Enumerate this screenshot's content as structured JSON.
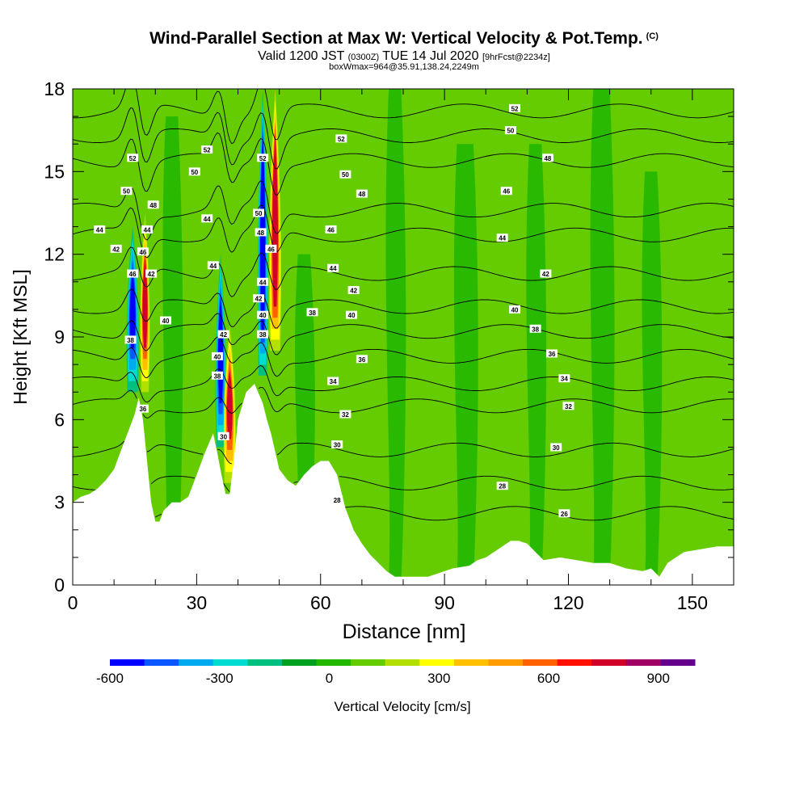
{
  "title": {
    "main": "Wind-Parallel Section at Max W: Vertical Velocity & Pot.Temp.",
    "copyright": "(C)",
    "valid_prefix": "Valid 1200 JST",
    "valid_utc": "(0300Z)",
    "valid_date": "TUE 14 Jul 2020",
    "forecast": "[9hrFcst@2234z]",
    "box": "boxWmax=964@35.91,138.24,2249m"
  },
  "chart_data": {
    "type": "heatmap",
    "title": "Wind-Parallel Section at Max W: Vertical Velocity & Pot.Temp.",
    "xlabel": "Distance [nm]",
    "ylabel": "Height [Kft MSL]",
    "xlim": [
      0,
      160
    ],
    "ylim": [
      0,
      18
    ],
    "x_ticks": [
      0,
      30,
      60,
      90,
      120,
      150
    ],
    "y_ticks": [
      0,
      3,
      6,
      9,
      12,
      15,
      18
    ],
    "grid": false,
    "colorbar": {
      "label": "Vertical Velocity [cm/s]",
      "range": [
        -600,
        1000
      ],
      "ticks": [
        -600,
        -300,
        0,
        300,
        600,
        900
      ],
      "colors": [
        "#0000ff",
        "#0a56ff",
        "#00aaf0",
        "#00dcd0",
        "#00c080",
        "#00a020",
        "#22b800",
        "#64cc00",
        "#b4e000",
        "#ffff00",
        "#ffc000",
        "#ff9c00",
        "#ff6000",
        "#ff1000",
        "#d00028",
        "#a00064",
        "#64008c"
      ]
    },
    "terrain": [
      [
        0,
        3
      ],
      [
        2,
        3.2
      ],
      [
        4,
        3.3
      ],
      [
        6,
        3.5
      ],
      [
        8,
        3.8
      ],
      [
        10,
        4.2
      ],
      [
        12,
        5
      ],
      [
        14,
        5.8
      ],
      [
        15,
        6.2
      ],
      [
        16,
        6.8
      ],
      [
        17,
        6
      ],
      [
        18,
        4.5
      ],
      [
        19,
        3
      ],
      [
        20,
        2.3
      ],
      [
        21,
        2.3
      ],
      [
        22,
        2.7
      ],
      [
        24,
        3
      ],
      [
        26,
        3
      ],
      [
        28,
        3.2
      ],
      [
        30,
        4
      ],
      [
        32,
        4.8
      ],
      [
        34,
        5.5
      ],
      [
        35,
        4.8
      ],
      [
        36,
        4
      ],
      [
        37,
        3.3
      ],
      [
        38,
        3.3
      ],
      [
        39,
        4.5
      ],
      [
        40,
        6
      ],
      [
        42,
        7
      ],
      [
        44,
        7.3
      ],
      [
        46,
        6.6
      ],
      [
        47,
        6
      ],
      [
        48,
        5.5
      ],
      [
        50,
        4.2
      ],
      [
        52,
        3.8
      ],
      [
        54,
        3.6
      ],
      [
        56,
        4
      ],
      [
        58,
        4.3
      ],
      [
        60,
        4.5
      ],
      [
        62,
        4.5
      ],
      [
        64,
        4
      ],
      [
        66,
        2.8
      ],
      [
        68,
        2
      ],
      [
        70,
        1.5
      ],
      [
        72,
        1.1
      ],
      [
        74,
        0.8
      ],
      [
        76,
        0.5
      ],
      [
        78,
        0.3
      ],
      [
        82,
        0.3
      ],
      [
        86,
        0.3
      ],
      [
        88,
        0.4
      ],
      [
        92,
        0.6
      ],
      [
        96,
        0.7
      ],
      [
        98,
        0.9
      ],
      [
        100,
        1
      ],
      [
        104,
        1.4
      ],
      [
        106,
        1.6
      ],
      [
        108,
        1.6
      ],
      [
        110,
        1.5
      ],
      [
        112,
        1.2
      ],
      [
        114,
        0.9
      ],
      [
        118,
        1
      ],
      [
        122,
        0.9
      ],
      [
        126,
        0.8
      ],
      [
        130,
        0.8
      ],
      [
        134,
        0.6
      ],
      [
        138,
        0.5
      ],
      [
        140,
        0.6
      ],
      [
        142,
        0.3
      ],
      [
        144,
        0.8
      ],
      [
        146,
        1
      ],
      [
        148,
        1.2
      ],
      [
        152,
        1.3
      ],
      [
        156,
        1.4
      ],
      [
        160,
        1.4
      ]
    ],
    "isentropes": [
      {
        "value": "26",
        "height": 2.6
      },
      {
        "value": "28",
        "height": 3.7
      },
      {
        "value": "30",
        "height": 4.9
      },
      {
        "value": "32",
        "height": 6.5
      },
      {
        "value": "34",
        "height": 7.3
      },
      {
        "value": "36",
        "height": 8.3
      },
      {
        "value": "38",
        "height": 9.2
      },
      {
        "value": "40",
        "height": 10.1
      },
      {
        "value": "42",
        "height": 11.3
      },
      {
        "value": "44",
        "height": 12.7
      },
      {
        "value": "46",
        "height": 13.6
      },
      {
        "value": "48",
        "height": 15.4
      },
      {
        "value": "50",
        "height": 16.3
      },
      {
        "value": "52",
        "height": 17.2
      }
    ],
    "contour_labels": [
      {
        "text": "44",
        "x": 6.5,
        "y": 12.9
      },
      {
        "text": "42",
        "x": 10.5,
        "y": 12.2
      },
      {
        "text": "52",
        "x": 14.5,
        "y": 15.5
      },
      {
        "text": "50",
        "x": 13,
        "y": 14.3
      },
      {
        "text": "46",
        "x": 14.5,
        "y": 11.3
      },
      {
        "text": "38",
        "x": 14,
        "y": 8.9
      },
      {
        "text": "48",
        "x": 19.5,
        "y": 13.8
      },
      {
        "text": "44",
        "x": 18,
        "y": 12.9
      },
      {
        "text": "46",
        "x": 17,
        "y": 12.1
      },
      {
        "text": "42",
        "x": 19,
        "y": 11.3
      },
      {
        "text": "40",
        "x": 22.5,
        "y": 9.6
      },
      {
        "text": "36",
        "x": 17,
        "y": 6.4
      },
      {
        "text": "52",
        "x": 32.5,
        "y": 15.8
      },
      {
        "text": "50",
        "x": 29.5,
        "y": 15
      },
      {
        "text": "44",
        "x": 32.5,
        "y": 13.3
      },
      {
        "text": "44",
        "x": 34,
        "y": 11.6
      },
      {
        "text": "40",
        "x": 35,
        "y": 8.3
      },
      {
        "text": "38",
        "x": 35,
        "y": 7.6
      },
      {
        "text": "42",
        "x": 36.5,
        "y": 9.1
      },
      {
        "text": "30",
        "x": 36.5,
        "y": 5.4
      },
      {
        "text": "52",
        "x": 46,
        "y": 15.5
      },
      {
        "text": "50",
        "x": 45,
        "y": 13.5
      },
      {
        "text": "48",
        "x": 45.5,
        "y": 12.8
      },
      {
        "text": "44",
        "x": 46,
        "y": 11
      },
      {
        "text": "42",
        "x": 45,
        "y": 10.4
      },
      {
        "text": "46",
        "x": 48,
        "y": 12.2
      },
      {
        "text": "40",
        "x": 46,
        "y": 9.8
      },
      {
        "text": "38",
        "x": 46,
        "y": 9.1
      },
      {
        "text": "52",
        "x": 65,
        "y": 16.2
      },
      {
        "text": "50",
        "x": 66,
        "y": 14.9
      },
      {
        "text": "48",
        "x": 70,
        "y": 14.2
      },
      {
        "text": "46",
        "x": 62.5,
        "y": 12.9
      },
      {
        "text": "44",
        "x": 63,
        "y": 11.5
      },
      {
        "text": "42",
        "x": 68,
        "y": 10.7
      },
      {
        "text": "38",
        "x": 58,
        "y": 9.9
      },
      {
        "text": "40",
        "x": 67.5,
        "y": 9.8
      },
      {
        "text": "36",
        "x": 70,
        "y": 8.2
      },
      {
        "text": "34",
        "x": 63,
        "y": 7.4
      },
      {
        "text": "32",
        "x": 66,
        "y": 6.2
      },
      {
        "text": "30",
        "x": 64,
        "y": 5.1
      },
      {
        "text": "28",
        "x": 64,
        "y": 3.1
      },
      {
        "text": "52",
        "x": 107,
        "y": 17.3
      },
      {
        "text": "50",
        "x": 106,
        "y": 16.5
      },
      {
        "text": "48",
        "x": 115,
        "y": 15.5
      },
      {
        "text": "46",
        "x": 105,
        "y": 14.3
      },
      {
        "text": "44",
        "x": 104,
        "y": 12.6
      },
      {
        "text": "42",
        "x": 114.5,
        "y": 11.3
      },
      {
        "text": "40",
        "x": 107,
        "y": 10
      },
      {
        "text": "38",
        "x": 112,
        "y": 9.3
      },
      {
        "text": "36",
        "x": 116,
        "y": 8.4
      },
      {
        "text": "34",
        "x": 119,
        "y": 7.5
      },
      {
        "text": "32",
        "x": 120,
        "y": 6.5
      },
      {
        "text": "30",
        "x": 117,
        "y": 5
      },
      {
        "text": "28",
        "x": 104,
        "y": 3.6
      },
      {
        "text": "26",
        "x": 119,
        "y": 2.6
      }
    ],
    "updrafts": [
      {
        "x": 14.5,
        "top": 13,
        "bottom": 7,
        "w": 2.5,
        "dir": "down"
      },
      {
        "x": 17.5,
        "top": 13.5,
        "bottom": 7,
        "w": 1.8,
        "dir": "up"
      },
      {
        "x": 35.8,
        "top": 12,
        "bottom": 5,
        "w": 2,
        "dir": "down"
      },
      {
        "x": 38,
        "top": 9.4,
        "bottom": 3.7,
        "w": 2.5,
        "dir": "up"
      },
      {
        "x": 46,
        "top": 18,
        "bottom": 7.6,
        "w": 2,
        "dir": "down"
      },
      {
        "x": 49,
        "top": 18,
        "bottom": 8.5,
        "w": 2.5,
        "dir": "up"
      }
    ]
  }
}
